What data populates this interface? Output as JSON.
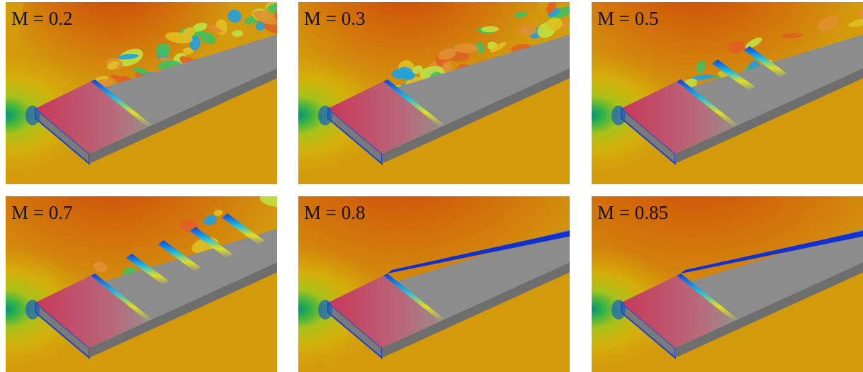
{
  "panels": [
    {
      "label": "M = 0.2"
    },
    {
      "label": "M = 0.3"
    },
    {
      "label": "M = 0.5"
    },
    {
      "label": "M = 0.7"
    },
    {
      "label": "M = 0.8"
    },
    {
      "label": "M = 0.85"
    }
  ]
}
